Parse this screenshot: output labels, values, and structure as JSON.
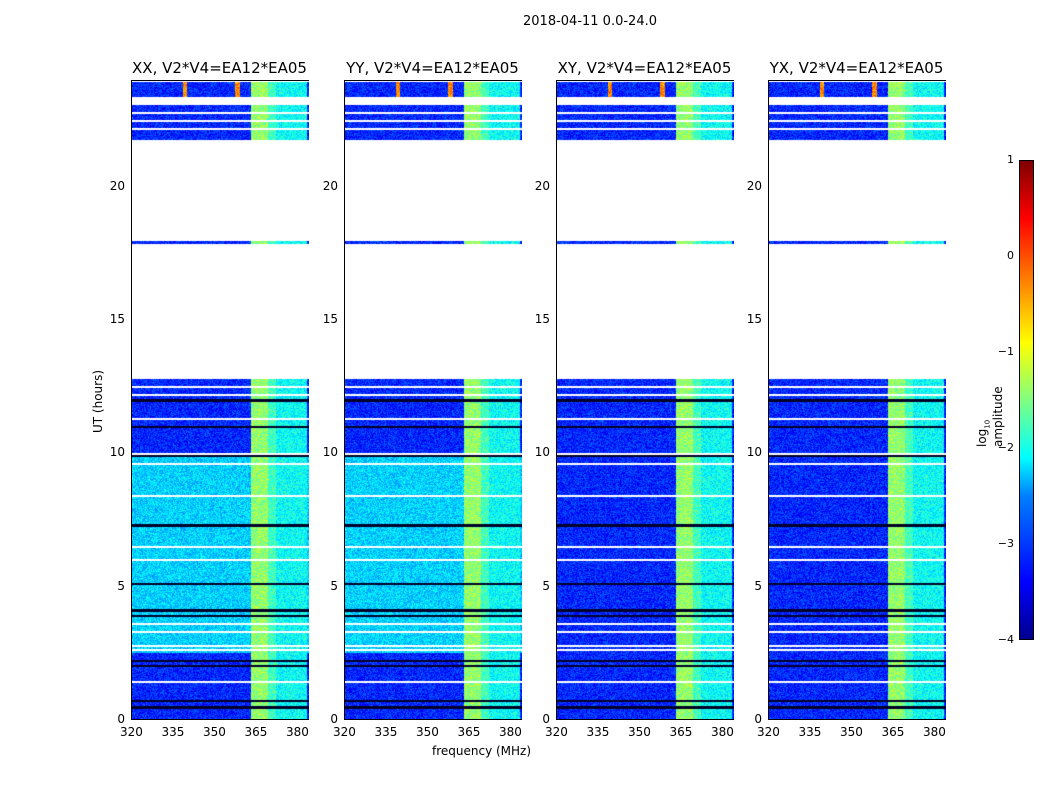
{
  "suptitle": "2018-04-11 0.0-24.0",
  "chart_data": {
    "type": "heatmap",
    "xlabel": "frequency (MHz)",
    "ylabel": "UT (hours)",
    "xlim": [
      320,
      384
    ],
    "ylim": [
      0,
      24
    ],
    "xticks": [
      "320",
      "335",
      "350",
      "365",
      "380"
    ],
    "xtick_values": [
      320,
      335,
      350,
      365,
      380
    ],
    "yticks": [
      "0",
      "5",
      "10",
      "15",
      "20"
    ],
    "ytick_values": [
      0,
      5,
      10,
      15,
      20
    ],
    "panels": [
      {
        "title": "XX, V2*V4=EA12*EA05",
        "bright_background": true
      },
      {
        "title": "YY, V2*V4=EA12*EA05",
        "bright_background": true
      },
      {
        "title": "XY, V2*V4=EA12*EA05",
        "bright_background": false
      },
      {
        "title": "YX, V2*V4=EA12*EA05",
        "bright_background": false
      }
    ],
    "data_segments_hours": [
      [
        0,
        12.8
      ],
      [
        17.9,
        18.0
      ],
      [
        21.8,
        23.1
      ],
      [
        23.4,
        24
      ]
    ],
    "blank_lines_hours": [
      1.4,
      2.6,
      2.75,
      3.3,
      3.6,
      6.0,
      6.5,
      8.4,
      9.6,
      10.0,
      11.3,
      12.2,
      12.5,
      22.2,
      22.5,
      22.8
    ],
    "flagged_lines_hours": [
      0.45,
      0.7,
      2.0,
      2.2,
      3.9,
      4.1,
      5.1,
      7.3,
      9.9,
      11.0,
      12.0
    ],
    "bright_background_hours": [
      2.5,
      10.0
    ],
    "bands_mhz": [
      {
        "range": [
          363,
          369
        ],
        "level": -1.4
      },
      {
        "range": [
          369,
          372
        ],
        "level": -1.8
      },
      {
        "range": [
          372,
          383
        ],
        "level": -2.1
      }
    ],
    "rfi_lines_mhz": [
      339,
      358
    ],
    "colorbar": {
      "label": "log10 amplitude",
      "label_main": "log",
      "label_sub": "10",
      "label_rest": " amplitude",
      "range": [
        -4,
        1
      ],
      "ticks": [
        "1",
        "0",
        "−1",
        "−2",
        "−3",
        "−4"
      ],
      "tick_values": [
        1,
        0,
        -1,
        -2,
        -3,
        -4
      ],
      "colormap": "jet"
    }
  }
}
